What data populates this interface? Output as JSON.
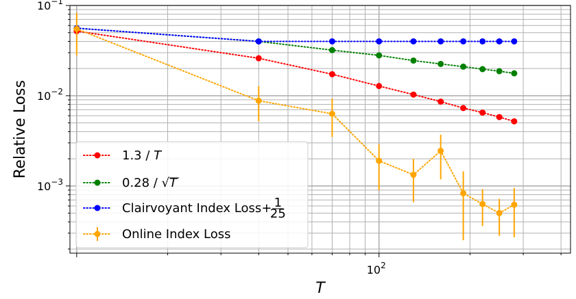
{
  "chart_data": {
    "type": "line",
    "xlabel": "T",
    "ylabel": "Relative Loss",
    "xscale": "log",
    "yscale": "log",
    "xlim": [
      9.5,
      430
    ],
    "ylim": [
      0.00018,
      0.1
    ],
    "grid": true,
    "legend_position": "lower-left",
    "x_tick_labels": [
      {
        "value": 100,
        "base": "10",
        "exp": "2"
      }
    ],
    "y_tick_labels": [
      {
        "value": 0.1,
        "base": "10",
        "exp": "−1"
      },
      {
        "value": 0.01,
        "base": "10",
        "exp": "−2"
      },
      {
        "value": 0.001,
        "base": "10",
        "exp": "−3"
      }
    ],
    "series": [
      {
        "name": "1.3 / T",
        "legend_parts": [
          "1.3 / ",
          "T"
        ],
        "color": "#ff0000",
        "x": [
          10,
          40,
          70,
          100,
          130,
          160,
          190,
          220,
          250,
          280
        ],
        "y": [
          0.052,
          0.026,
          0.0173,
          0.0128,
          0.0103,
          0.0086,
          0.0073,
          0.0065,
          0.0058,
          0.0052
        ]
      },
      {
        "name": "0.28 / √T",
        "legend_parts": [
          "0.28 / ",
          "√",
          "T"
        ],
        "color": "#008000",
        "x": [
          10,
          40,
          70,
          100,
          130,
          160,
          190,
          220,
          250,
          280
        ],
        "y": [
          0.056,
          0.04,
          0.032,
          0.028,
          0.0245,
          0.0225,
          0.021,
          0.0197,
          0.0187,
          0.0177
        ]
      },
      {
        "name": "Clairvoyant Index Loss+1/25",
        "legend_parts": [
          "Clairvoyant Index Loss+",
          "1",
          "25"
        ],
        "color": "#0000ff",
        "x": [
          10,
          40,
          70,
          100,
          130,
          160,
          190,
          220,
          250,
          280
        ],
        "y": [
          0.056,
          0.04,
          0.04,
          0.04,
          0.04,
          0.04,
          0.04,
          0.04,
          0.04,
          0.04
        ]
      },
      {
        "name": "Online Index Loss",
        "legend_parts": [
          "Online Index Loss"
        ],
        "color": "#ffa500",
        "x": [
          10,
          40,
          70,
          100,
          130,
          160,
          190,
          220,
          250,
          280
        ],
        "y": [
          0.055,
          0.0088,
          0.0063,
          0.0019,
          0.00133,
          0.00245,
          0.00083,
          0.00063,
          0.0005,
          0.00062
        ],
        "err_low": [
          0.028,
          0.0052,
          0.0035,
          0.0009,
          0.00066,
          0.00118,
          0.00025,
          0.00036,
          0.00028,
          0.00027
        ],
        "err_high": [
          0.083,
          0.0128,
          0.0093,
          0.0029,
          0.002,
          0.0037,
          0.00145,
          0.00092,
          0.00072,
          0.00095
        ]
      }
    ]
  }
}
